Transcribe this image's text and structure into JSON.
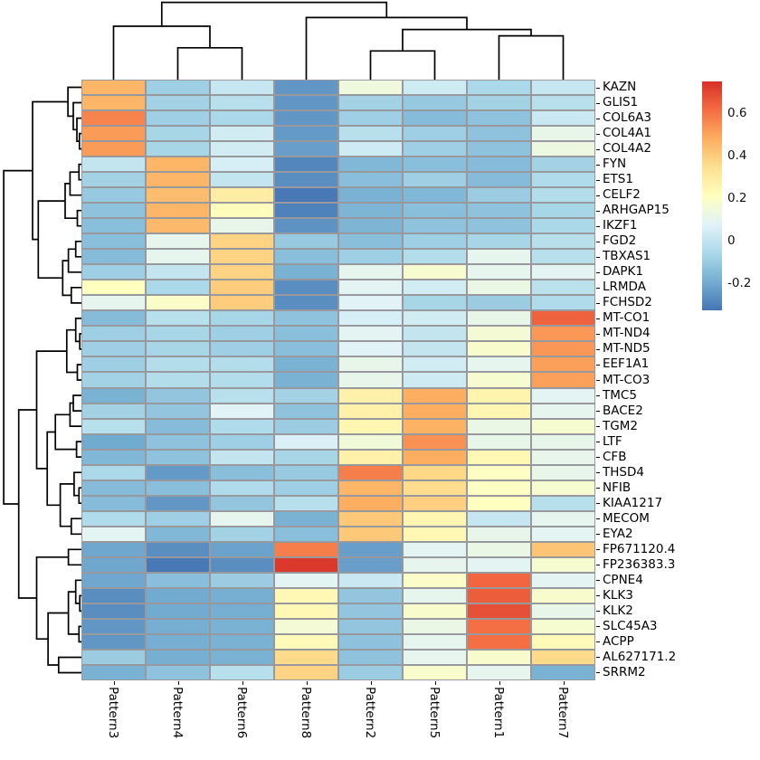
{
  "figure": {
    "background": "#ffffff"
  },
  "chart_data": {
    "type": "heatmap",
    "title": "",
    "xlabel": "",
    "ylabel": "",
    "legend_position": "colorbar-right",
    "grid": "gray cell borders",
    "columns": [
      "Pattern3",
      "Pattern4",
      "Pattern6",
      "Pattern8",
      "Pattern2",
      "Pattern5",
      "Pattern1",
      "Pattern7"
    ],
    "rows": [
      "KAZN",
      "GLIS1",
      "COL6A3",
      "COL4A1",
      "COL4A2",
      "FYN",
      "ETS1",
      "CELF2",
      "ARHGAP15",
      "IKZF1",
      "FGD2",
      "TBXAS1",
      "DAPK1",
      "LRMDA",
      "FCHSD2",
      "MT-CO1",
      "MT-ND4",
      "MT-ND5",
      "EEF1A1",
      "MT-CO3",
      "TMC5",
      "BACE2",
      "TGM2",
      "LTF",
      "CFB",
      "THSD4",
      "NFIB",
      "KIAA1217",
      "MECOM",
      "EYA2",
      "FP671120.4",
      "FP236383.3",
      "CPNE4",
      "KLK3",
      "KLK2",
      "SLC45A3",
      "ACPP",
      "AL627171.2",
      "SRRM2"
    ],
    "values": [
      [
        0.46,
        -0.09,
        0.01,
        -0.25,
        0.14,
        0.03,
        -0.06,
        0.01
      ],
      [
        0.46,
        -0.08,
        -0.03,
        -0.25,
        -0.08,
        -0.11,
        -0.08,
        -0.03
      ],
      [
        0.57,
        -0.09,
        -0.06,
        -0.25,
        -0.09,
        -0.15,
        -0.13,
        0.02
      ],
      [
        0.52,
        -0.07,
        0.04,
        -0.24,
        -0.03,
        -0.09,
        -0.13,
        0.11
      ],
      [
        0.52,
        -0.07,
        0.04,
        -0.23,
        0.03,
        -0.09,
        -0.13,
        0.13
      ],
      [
        0.0,
        0.46,
        0.05,
        -0.29,
        -0.16,
        -0.14,
        -0.15,
        -0.08
      ],
      [
        -0.08,
        0.46,
        0.0,
        -0.27,
        -0.14,
        -0.09,
        -0.15,
        -0.05
      ],
      [
        -0.11,
        0.44,
        0.29,
        -0.32,
        -0.18,
        -0.16,
        -0.1,
        -0.04
      ],
      [
        -0.13,
        0.46,
        0.22,
        -0.3,
        -0.17,
        -0.14,
        -0.13,
        -0.07
      ],
      [
        -0.14,
        0.45,
        0.11,
        -0.26,
        -0.17,
        -0.13,
        -0.13,
        -0.06
      ],
      [
        -0.14,
        0.1,
        0.38,
        -0.11,
        -0.14,
        -0.09,
        -0.07,
        -0.03
      ],
      [
        -0.15,
        0.1,
        0.38,
        -0.14,
        -0.09,
        -0.04,
        0.1,
        -0.03
      ],
      [
        -0.09,
        0.0,
        0.38,
        -0.18,
        0.1,
        0.17,
        0.1,
        0.09
      ],
      [
        0.21,
        -0.06,
        0.4,
        -0.27,
        0.09,
        0.04,
        0.12,
        -0.02
      ],
      [
        0.1,
        0.19,
        0.4,
        -0.27,
        0.08,
        -0.07,
        -0.1,
        -0.05
      ],
      [
        -0.15,
        -0.03,
        -0.07,
        -0.13,
        0.05,
        0.04,
        0.11,
        0.64
      ],
      [
        -0.09,
        -0.07,
        -0.09,
        -0.14,
        0.09,
        0.0,
        0.16,
        0.53
      ],
      [
        -0.09,
        -0.07,
        -0.09,
        -0.14,
        0.08,
        0.0,
        0.18,
        0.53
      ],
      [
        -0.09,
        -0.04,
        -0.04,
        -0.18,
        0.11,
        0.04,
        0.1,
        0.51
      ],
      [
        -0.08,
        -0.04,
        -0.04,
        -0.18,
        0.11,
        0.03,
        0.17,
        0.51
      ],
      [
        -0.18,
        -0.12,
        -0.03,
        -0.08,
        0.27,
        0.48,
        0.26,
        0.09
      ],
      [
        -0.08,
        -0.12,
        0.08,
        -0.13,
        0.27,
        0.48,
        0.25,
        0.1
      ],
      [
        -0.03,
        -0.15,
        -0.05,
        -0.1,
        0.25,
        0.47,
        0.12,
        0.17
      ],
      [
        -0.2,
        -0.13,
        -0.09,
        0.06,
        0.15,
        0.54,
        0.11,
        0.11
      ],
      [
        -0.16,
        -0.13,
        0.0,
        -0.07,
        0.27,
        0.48,
        0.24,
        0.11
      ],
      [
        -0.06,
        -0.24,
        -0.14,
        -0.11,
        0.58,
        0.37,
        0.2,
        0.11
      ],
      [
        -0.15,
        -0.14,
        -0.05,
        -0.09,
        0.46,
        0.35,
        0.2,
        0.17
      ],
      [
        -0.15,
        -0.25,
        -0.12,
        -0.03,
        0.48,
        0.39,
        0.21,
        -0.03
      ],
      [
        -0.05,
        -0.09,
        0.1,
        -0.18,
        0.41,
        0.25,
        0.01,
        0.1
      ],
      [
        0.09,
        -0.16,
        -0.08,
        -0.14,
        0.41,
        0.24,
        0.11,
        0.09
      ],
      [
        -0.21,
        -0.27,
        -0.22,
        0.58,
        -0.23,
        0.09,
        0.12,
        0.42
      ],
      [
        -0.21,
        -0.32,
        -0.27,
        0.73,
        -0.23,
        0.1,
        0.09,
        0.17
      ],
      [
        -0.21,
        -0.14,
        -0.1,
        0.09,
        0.02,
        0.19,
        0.63,
        0.09
      ],
      [
        -0.27,
        -0.2,
        -0.19,
        0.24,
        -0.12,
        0.1,
        0.65,
        0.18
      ],
      [
        -0.27,
        -0.2,
        -0.19,
        0.24,
        -0.12,
        0.18,
        0.68,
        0.11
      ],
      [
        -0.25,
        -0.19,
        -0.18,
        0.16,
        -0.12,
        0.12,
        0.61,
        0.17
      ],
      [
        -0.25,
        -0.19,
        -0.18,
        0.23,
        -0.13,
        0.1,
        0.61,
        0.23
      ],
      [
        -0.1,
        -0.19,
        -0.18,
        0.36,
        -0.13,
        0.1,
        0.18,
        0.36
      ],
      [
        -0.18,
        -0.13,
        -0.03,
        0.38,
        -0.1,
        0.18,
        0.1,
        -0.18
      ]
    ],
    "vmin": -0.33,
    "vmax": 0.75,
    "colormap": {
      "name": "RdYlBu_r",
      "stops": [
        "#4575b4",
        "#74add1",
        "#abd9e9",
        "#e0f3f8",
        "#ffffbf",
        "#fee090",
        "#fdae61",
        "#f46d43",
        "#d73027"
      ]
    },
    "colorbar": {
      "tick_values": [
        0.6,
        0.4,
        0.2,
        0,
        -0.2
      ],
      "tick_labels": [
        "0.6",
        "0.4",
        "0.2",
        "0",
        "-0.2"
      ]
    },
    "cell_border_color": "#97999c",
    "dendrogram_line_color": "#000000",
    "col_dendrogram": [
      0.97,
      [
        0.67,
        0,
        [
          0.4,
          1,
          2
        ]
      ],
      [
        0.78,
        3,
        [
          0.63,
          [
            0.36,
            4,
            5
          ],
          [
            0.55,
            6,
            7
          ]
        ]
      ]
    ],
    "row_dendrogram": [
      0.955,
      [
        0.6,
        [
          0.165,
          0,
          [
            0.1,
            1,
            [
              0.055,
              2,
              [
                0.025,
                3,
                4
              ]
            ]
          ]
        ],
        [
          0.53,
          [
            0.2,
            [
              0.14,
              [
                0.03,
                5,
                6
              ],
              7
            ],
            [
              0.05,
              8,
              9
            ]
          ],
          [
            0.23,
            [
              0.16,
              [
                0.07,
                10,
                11
              ],
              12
            ],
            [
              0.125,
              13,
              14
            ]
          ]
        ]
      ],
      [
        0.77,
        [
          0.55,
          [
            0.18,
            [
              0.07,
              15,
              [
                0.02,
                16,
                17
              ]
            ],
            [
              0.05,
              18,
              19
            ]
          ],
          [
            0.42,
            [
              0.32,
              [
                0.14,
                [
                  0.1,
                  20,
                  21
                ],
                22
              ],
              [
                0.06,
                23,
                24
              ]
            ],
            [
              0.26,
              [
                0.09,
                25,
                [
                  0.03,
                  26,
                  27
                ]
              ],
              [
                0.125,
                28,
                29
              ]
            ]
          ]
        ],
        [
          0.55,
          [
            0.16,
            30,
            31
          ],
          [
            0.41,
            [
              0.16,
              [
                0.07,
                32,
                [
                  0.02,
                  33,
                  34
                ]
              ],
              [
                0.03,
                35,
                36
              ]
            ],
            [
              0.28,
              37,
              38
            ]
          ]
        ]
      ]
    ]
  }
}
